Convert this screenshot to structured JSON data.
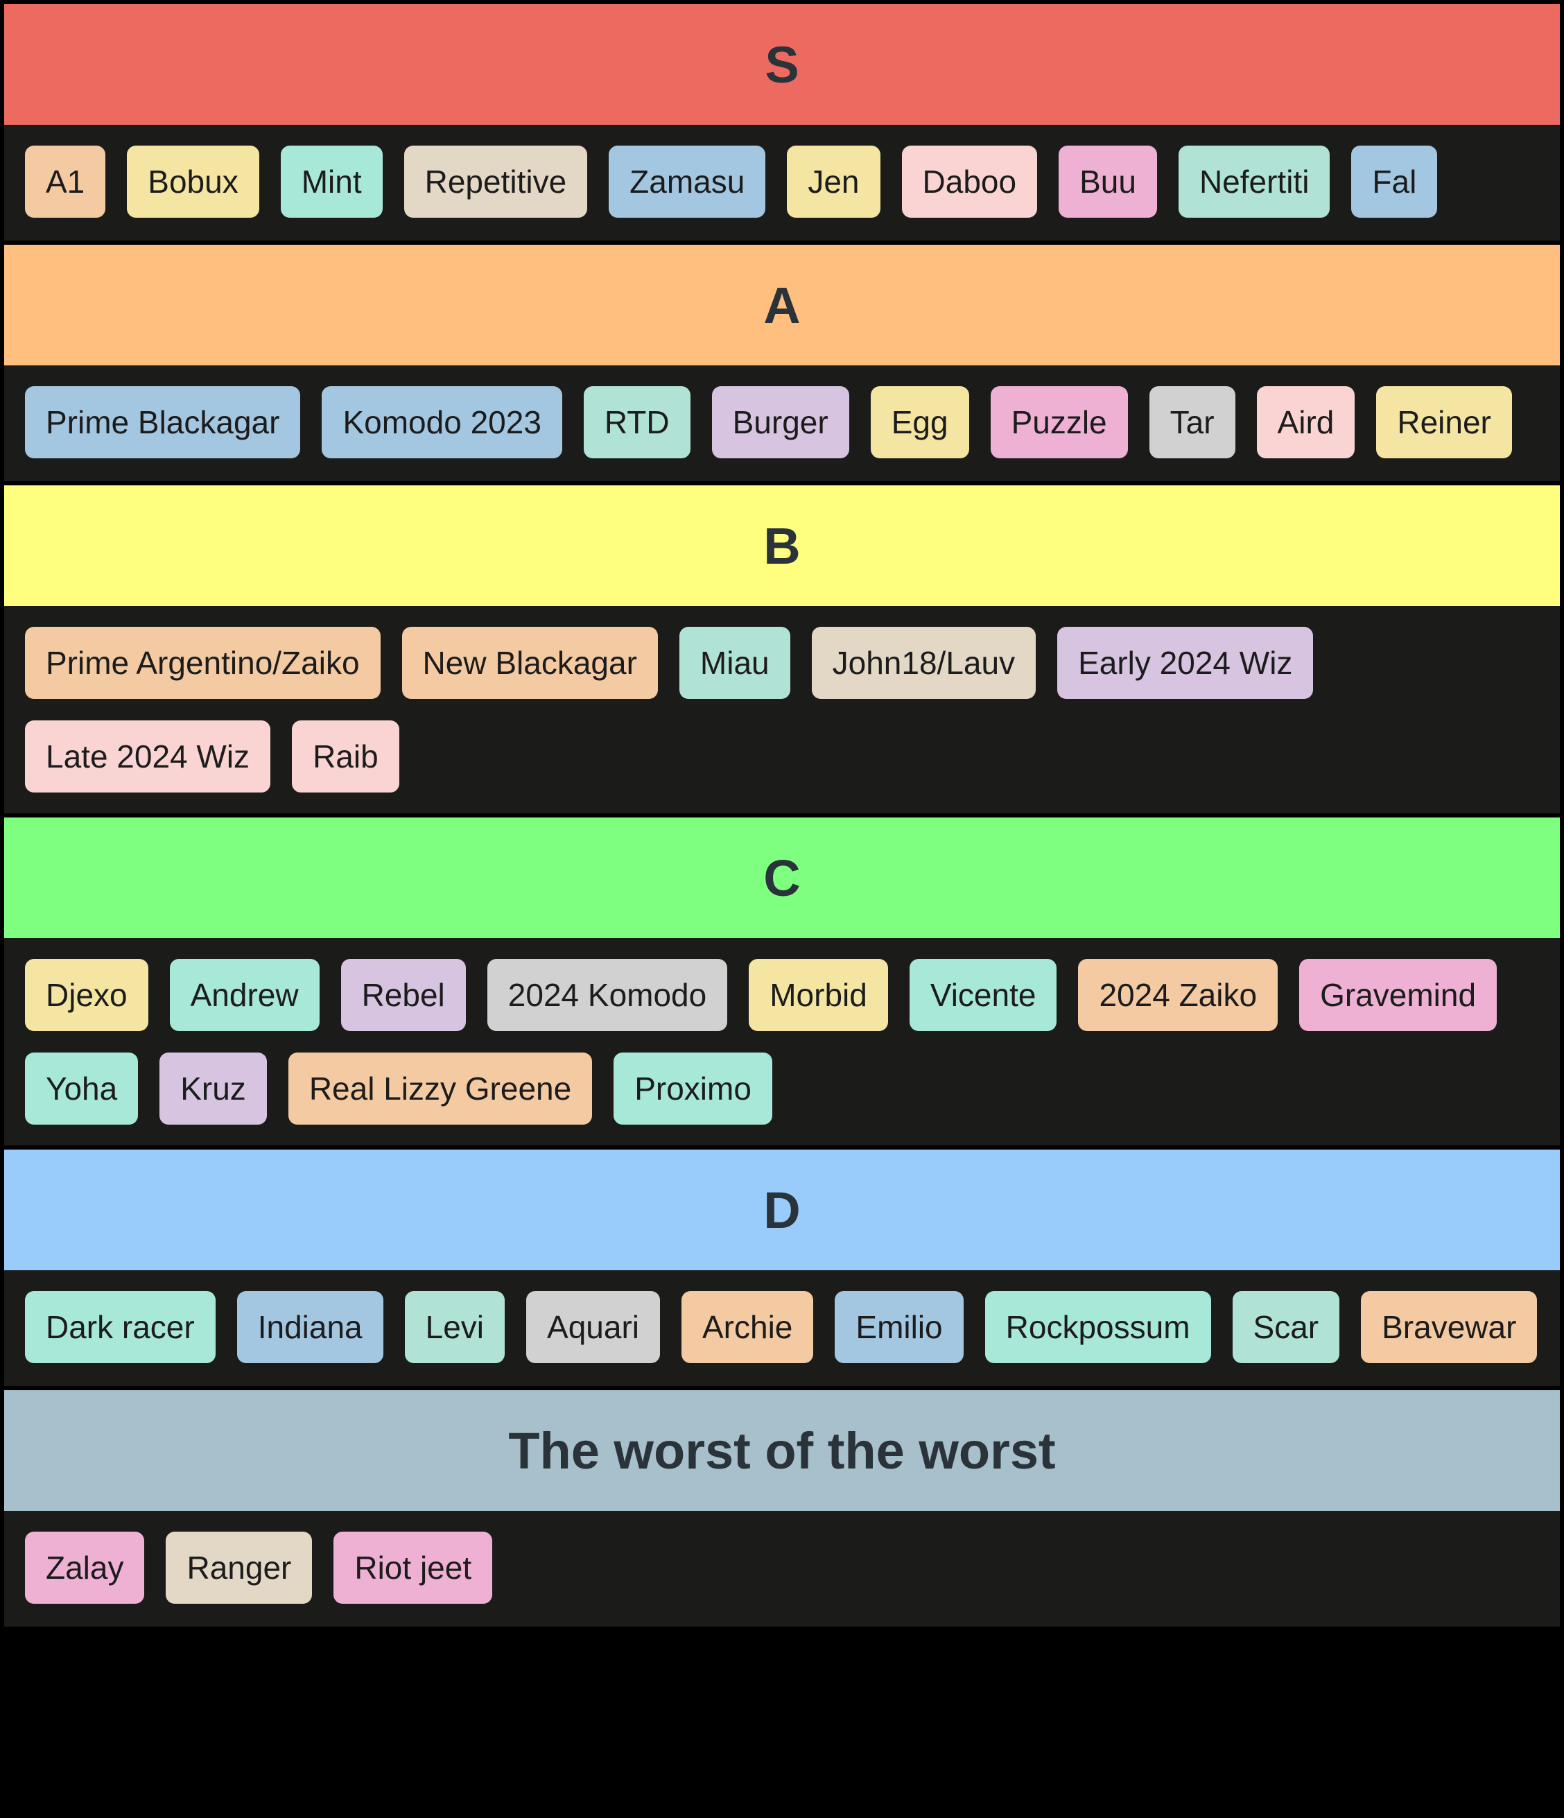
{
  "palette": {
    "peach": "#f3caa2",
    "yellow": "#f5e5a2",
    "mint": "#a8e8d9",
    "mint2": "#b0e3d6",
    "beige": "#e3d8c6",
    "blue": "#a4c7e1",
    "blush": "#f9d4d2",
    "pink": "#eeb1d4",
    "lavender": "#d6c4e0",
    "grey": "#d1d1d1"
  },
  "tiers": [
    {
      "label": "S",
      "color": "#ec6a60",
      "items": [
        {
          "name": "A1",
          "color": "peach"
        },
        {
          "name": "Bobux",
          "color": "yellow"
        },
        {
          "name": "Mint",
          "color": "mint"
        },
        {
          "name": "Repetitive",
          "color": "beige"
        },
        {
          "name": "Zamasu",
          "color": "blue"
        },
        {
          "name": "Jen",
          "color": "yellow"
        },
        {
          "name": "Daboo",
          "color": "blush"
        },
        {
          "name": "Buu",
          "color": "pink"
        },
        {
          "name": "Nefertiti",
          "color": "mint2"
        },
        {
          "name": "Fal",
          "color": "blue"
        }
      ]
    },
    {
      "label": "A",
      "color": "#ffbf7f",
      "items": [
        {
          "name": "Prime Blackagar",
          "color": "blue"
        },
        {
          "name": "Komodo 2023",
          "color": "blue"
        },
        {
          "name": "RTD",
          "color": "mint2"
        },
        {
          "name": "Burger",
          "color": "lavender"
        },
        {
          "name": "Egg",
          "color": "yellow"
        },
        {
          "name": "Puzzle",
          "color": "pink"
        },
        {
          "name": "Tar",
          "color": "grey"
        },
        {
          "name": "Aird",
          "color": "blush"
        },
        {
          "name": "Reiner",
          "color": "yellow"
        }
      ]
    },
    {
      "label": "B",
      "color": "#ffff7f",
      "items": [
        {
          "name": "Prime Argentino/Zaiko",
          "color": "peach"
        },
        {
          "name": "New Blackagar",
          "color": "peach"
        },
        {
          "name": "Miau",
          "color": "mint2"
        },
        {
          "name": "John18/Lauv",
          "color": "beige"
        },
        {
          "name": "Early 2024 Wiz",
          "color": "lavender"
        },
        {
          "name": "Late 2024 Wiz",
          "color": "blush"
        },
        {
          "name": "Raib",
          "color": "blush"
        }
      ]
    },
    {
      "label": "C",
      "color": "#7fff7f",
      "items": [
        {
          "name": "Djexo",
          "color": "yellow"
        },
        {
          "name": "Andrew",
          "color": "mint"
        },
        {
          "name": "Rebel",
          "color": "lavender"
        },
        {
          "name": "2024 Komodo",
          "color": "grey"
        },
        {
          "name": "Morbid",
          "color": "yellow"
        },
        {
          "name": "Vicente",
          "color": "mint"
        },
        {
          "name": "2024 Zaiko",
          "color": "peach"
        },
        {
          "name": "Gravemind",
          "color": "pink"
        },
        {
          "name": "Yoha",
          "color": "mint"
        },
        {
          "name": "Kruz",
          "color": "lavender"
        },
        {
          "name": "Real Lizzy Greene",
          "color": "peach"
        },
        {
          "name": "Proximo",
          "color": "mint"
        }
      ]
    },
    {
      "label": "D",
      "color": "#99ccfa",
      "items": [
        {
          "name": "Dark racer",
          "color": "mint"
        },
        {
          "name": "Indiana",
          "color": "blue"
        },
        {
          "name": "Levi",
          "color": "mint2"
        },
        {
          "name": "Aquari",
          "color": "grey"
        },
        {
          "name": "Archie",
          "color": "peach"
        },
        {
          "name": "Emilio",
          "color": "blue"
        },
        {
          "name": "Rockpossum",
          "color": "mint"
        },
        {
          "name": "Scar",
          "color": "mint2"
        },
        {
          "name": "Bravewar",
          "color": "peach"
        }
      ]
    },
    {
      "label": "The worst of the worst",
      "color": "#a7c0cb",
      "items": [
        {
          "name": "Zalay",
          "color": "pink"
        },
        {
          "name": "Ranger",
          "color": "beige"
        },
        {
          "name": "Riot jeet",
          "color": "pink"
        }
      ]
    }
  ]
}
